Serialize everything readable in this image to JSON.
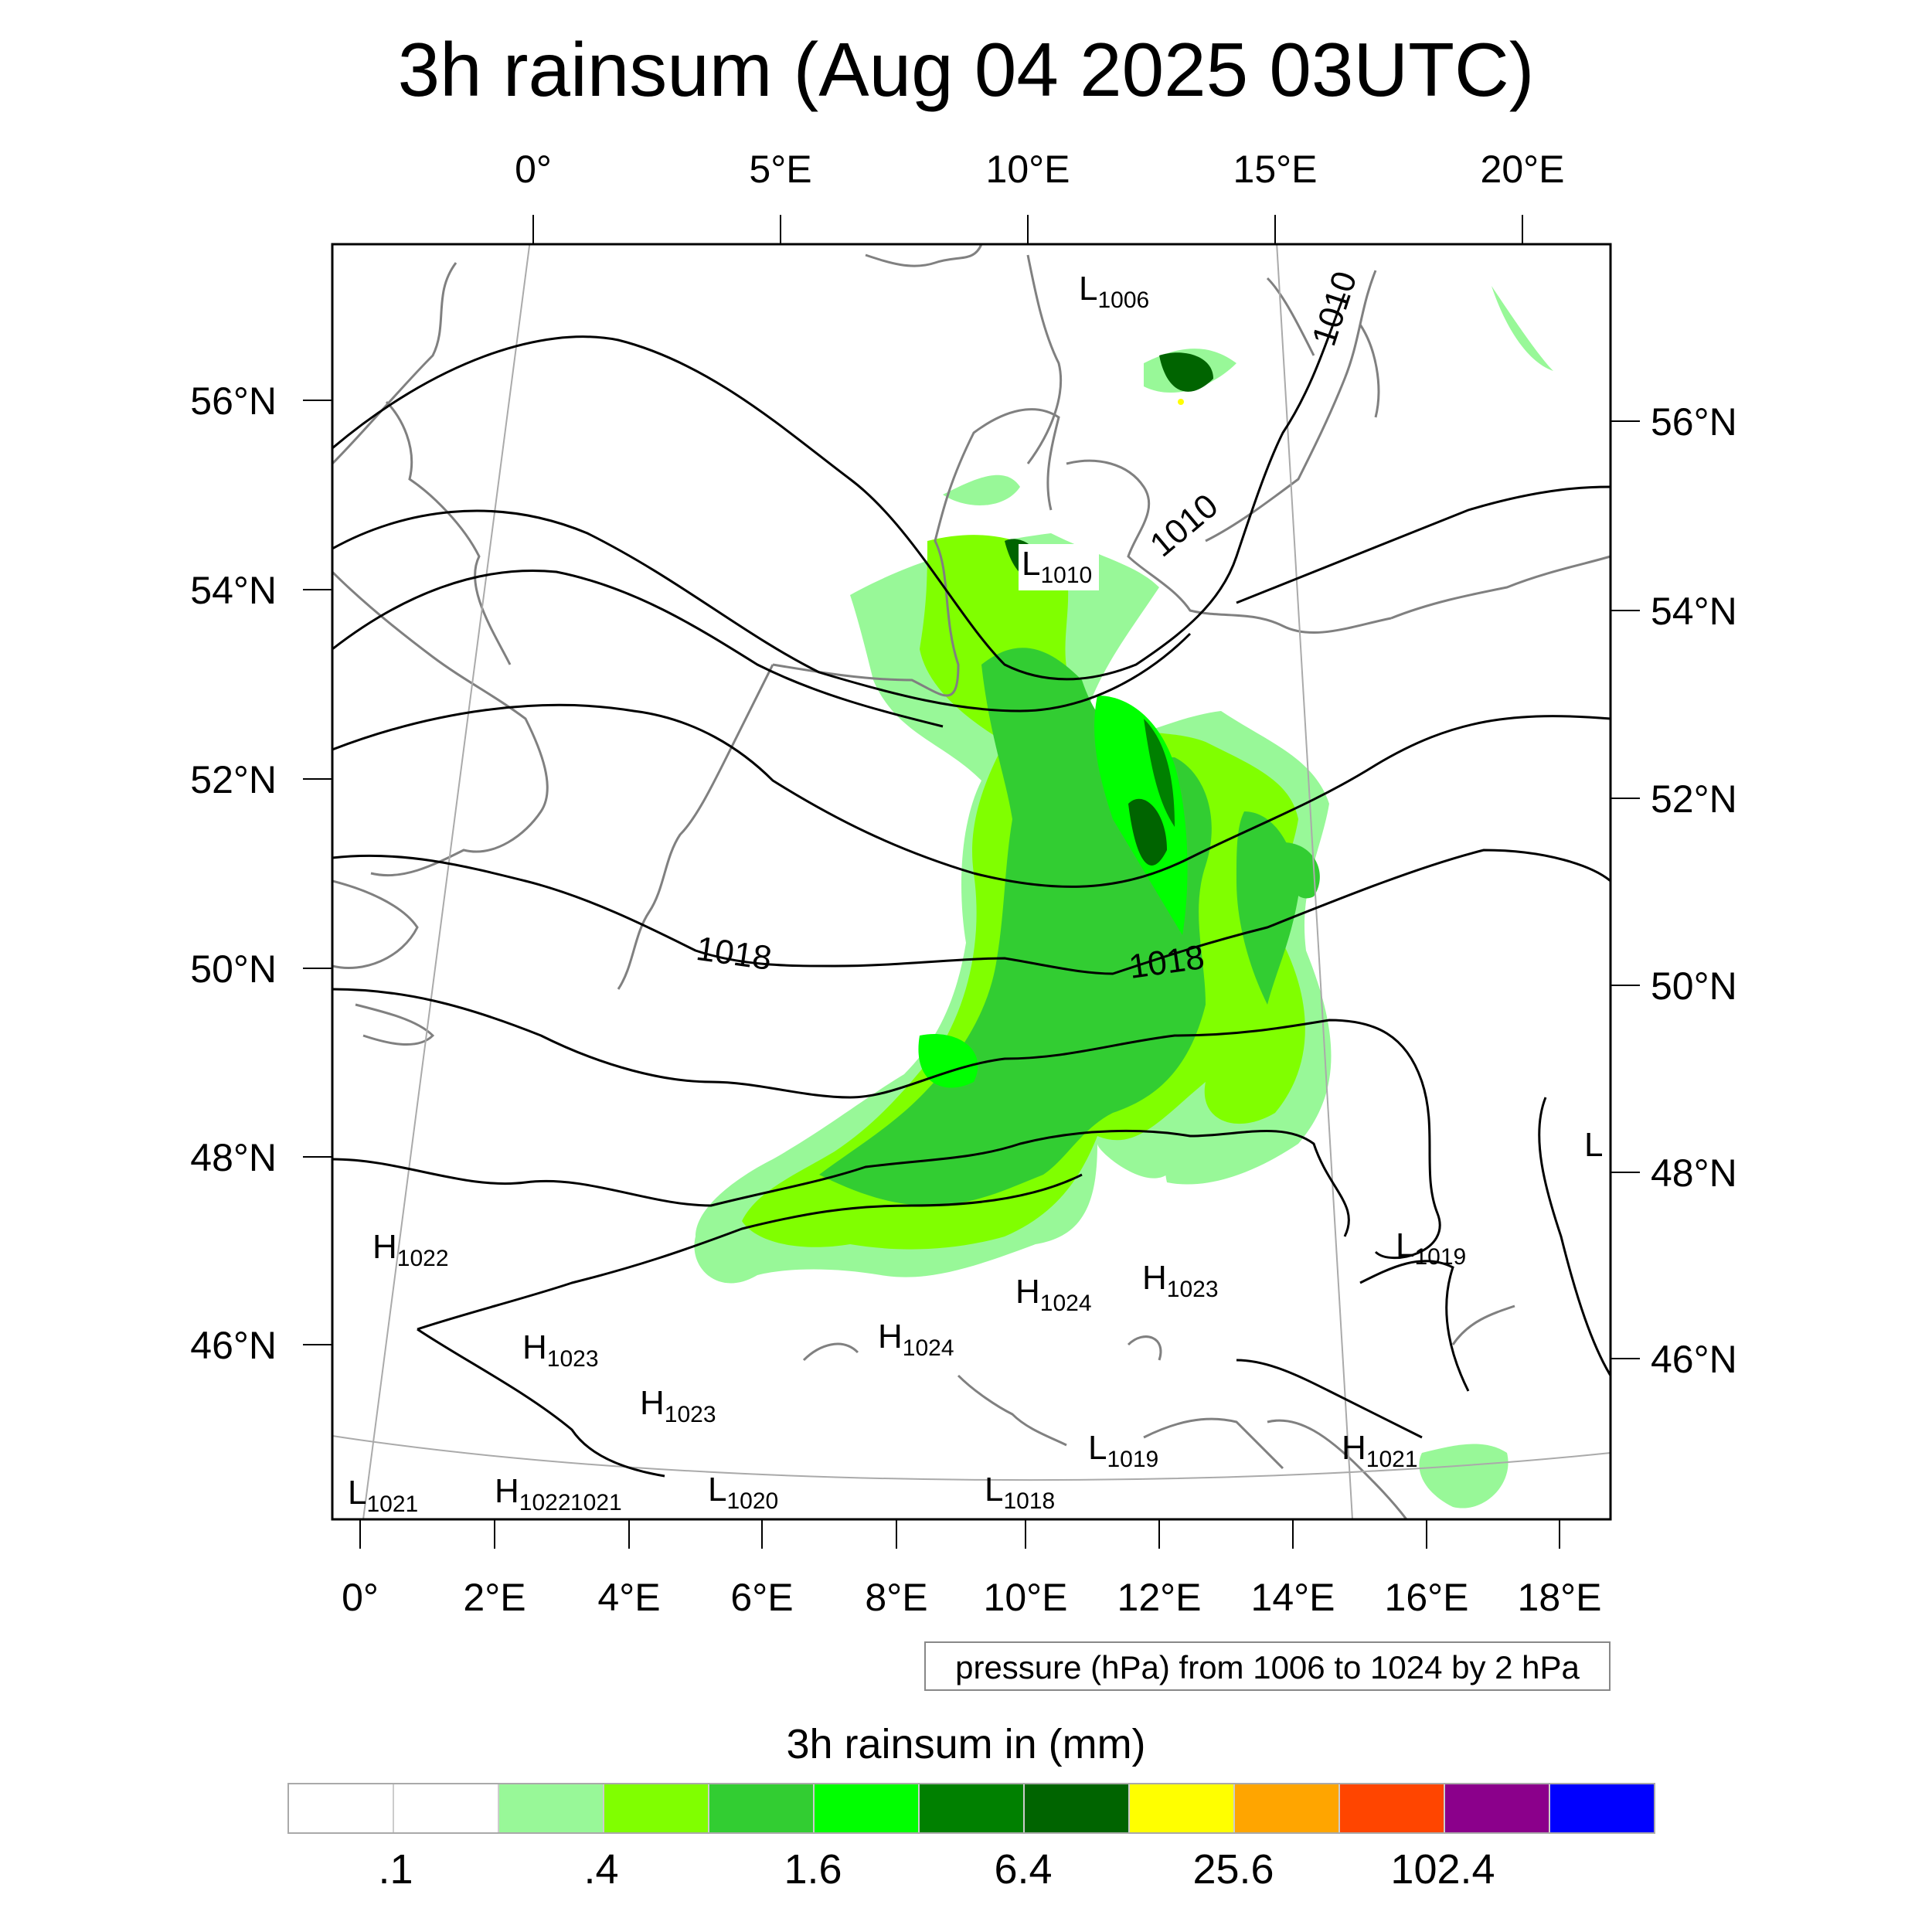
{
  "title": "3h rainsum (Aug 04 2025 03UTC)",
  "top_lon_labels": [
    "0°",
    "5°E",
    "10°E",
    "15°E",
    "20°E"
  ],
  "left_lat_labels": [
    "56°N",
    "54°N",
    "52°N",
    "50°N",
    "48°N",
    "46°N"
  ],
  "right_lat_labels": [
    "56°N",
    "54°N",
    "52°N",
    "50°N",
    "48°N",
    "46°N"
  ],
  "bottom_lon_labels": [
    "0°",
    "2°E",
    "4°E",
    "6°E",
    "8°E",
    "10°E",
    "12°E",
    "14°E",
    "16°E",
    "18°E"
  ],
  "contour_labels": [
    "1010",
    "1010",
    "1018",
    "1018"
  ],
  "pressure_centers": [
    {
      "kind": "L",
      "value": "1006"
    },
    {
      "kind": "L",
      "value": "1010"
    },
    {
      "kind": "H",
      "value": "1022"
    },
    {
      "kind": "H",
      "value": "1023"
    },
    {
      "kind": "H",
      "value": "1023"
    },
    {
      "kind": "H",
      "value": "1024"
    },
    {
      "kind": "H",
      "value": "1024"
    },
    {
      "kind": "H",
      "value": "1023"
    },
    {
      "kind": "L",
      "value": "1019"
    },
    {
      "kind": "L",
      "value": "1019"
    },
    {
      "kind": "H",
      "value": "1021"
    },
    {
      "kind": "L",
      "value": "1021"
    },
    {
      "kind": "H",
      "value": "1022"
    },
    {
      "kind": "",
      "value": "1021"
    },
    {
      "kind": "L",
      "value": "1020"
    },
    {
      "kind": "L",
      "value": "1018"
    },
    {
      "kind": "L",
      "value": ""
    }
  ],
  "info_box": "pressure (hPa) from 1006 to 1024 by 2 hPa",
  "legend": {
    "title": "3h rainsum in (mm)",
    "colors": [
      "#ffffff",
      "#ffffff",
      "#98f898",
      "#80ff00",
      "#32cd32",
      "#00ff00",
      "#008000",
      "#006400",
      "#ffff00",
      "#ffa500",
      "#ff4500",
      "#8b008b",
      "#0000ff"
    ],
    "labels": [
      ".1",
      ".4",
      "1.6",
      "6.4",
      "25.6",
      "102.4"
    ]
  }
}
